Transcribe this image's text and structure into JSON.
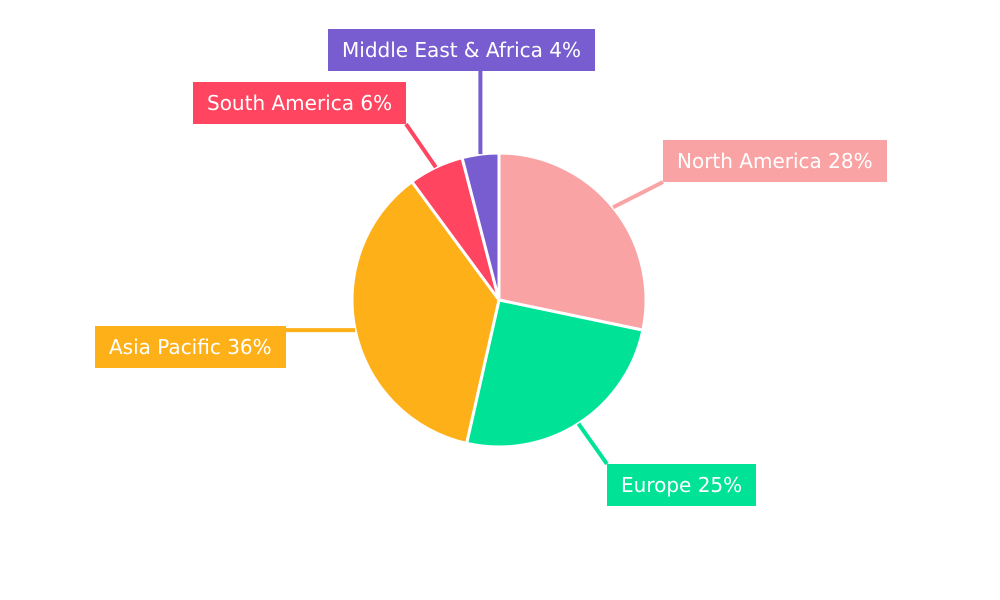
{
  "page": {
    "background_color": "#FFFFFF",
    "label_text_color": "#FFFFFF"
  },
  "chart_data": {
    "type": "pie",
    "title": "",
    "categories": [
      "North America",
      "Europe",
      "Asia Pacific",
      "South America",
      "Middle East & Africa"
    ],
    "values": [
      28,
      25,
      36,
      6,
      4
    ],
    "unit": "%",
    "colors": [
      "#F9A3A4",
      "#00E396",
      "#FEB019",
      "#FF4560",
      "#775DD0"
    ],
    "slugs": [
      "north-america",
      "europe",
      "asia-pacific",
      "south-america",
      "middle-east-africa"
    ],
    "labels": [
      "North America 28%",
      "Europe 25%",
      "Asia Pacific 36%",
      "South America 6%",
      "Middle East & Africa 4%"
    ],
    "legend_position": "callout-labels",
    "slice_border_color": "#FFFFFF",
    "start_angle_deg": 0,
    "direction": "clockwise"
  }
}
